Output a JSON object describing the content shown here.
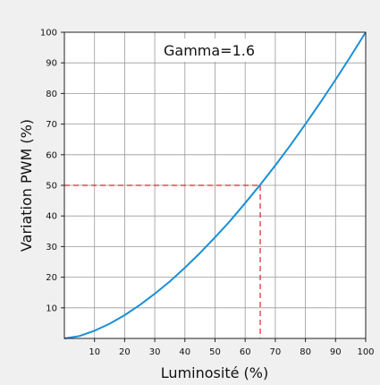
{
  "chart_data": {
    "type": "line",
    "xlabel": "Luminosité (%)",
    "ylabel": "Variation PWM (%)",
    "xlim": [
      0,
      100
    ],
    "ylim": [
      0,
      100
    ],
    "x_ticks": [
      "10",
      "20",
      "30",
      "40",
      "50",
      "60",
      "70",
      "80",
      "90",
      "100"
    ],
    "y_ticks": [
      "10",
      "20",
      "30",
      "40",
      "50",
      "60",
      "70",
      "80",
      "90",
      "100"
    ],
    "grid": true,
    "annotation": "Gamma=1.6",
    "series": [
      {
        "color": "#1a8fd6",
        "x": [
          0,
          5,
          10,
          15,
          20,
          25,
          30,
          35,
          40,
          45,
          50,
          55,
          60,
          65,
          70,
          75,
          80,
          85,
          90,
          95,
          100
        ],
        "y": [
          0,
          0.8,
          2.5,
          4.8,
          7.6,
          10.9,
          14.6,
          18.6,
          23.1,
          27.9,
          33.0,
          38.4,
          44.2,
          50.2,
          56.5,
          63.1,
          70.0,
          77.1,
          84.5,
          92.1,
          100
        ]
      }
    ],
    "reference_point": {
      "x": 65,
      "y": 50,
      "color": "#e8202a"
    }
  }
}
